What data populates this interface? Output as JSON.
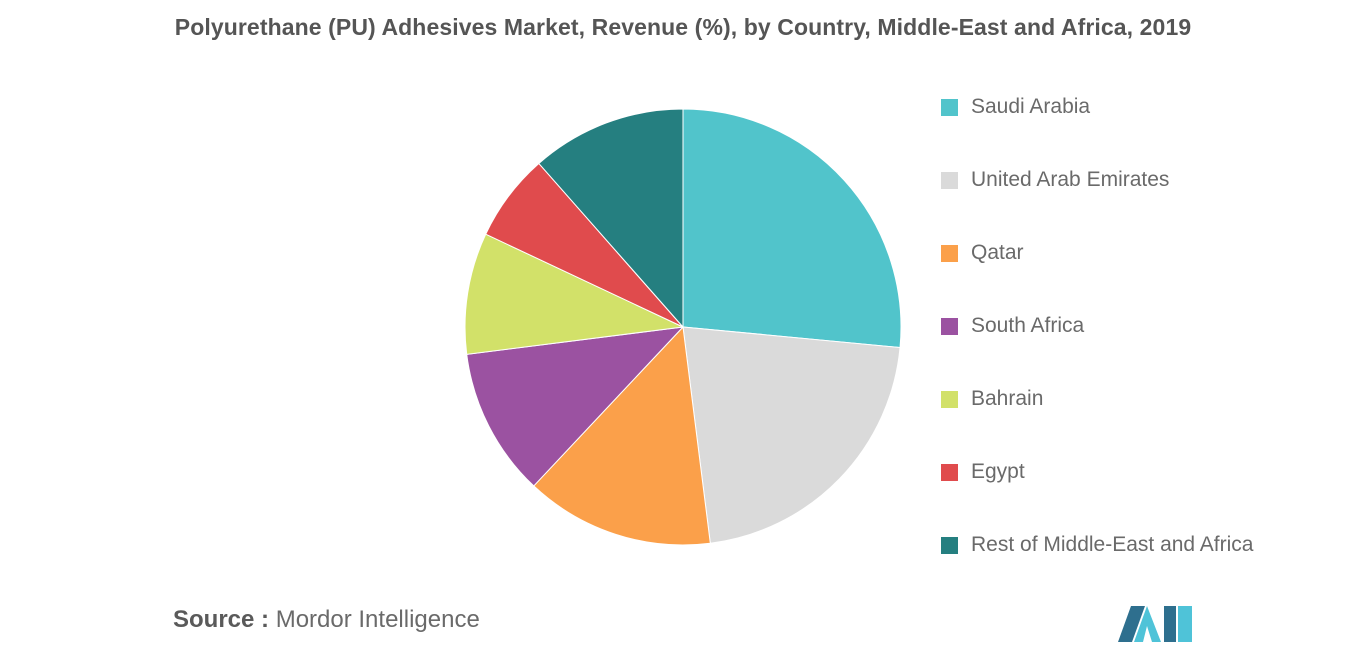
{
  "chart_data": {
    "type": "pie",
    "title": "Polyurethane (PU) Adhesives Market, Revenue (%), by Country, Middle-East and Africa, 2019",
    "unit": "%",
    "legend_position": "right",
    "slices": [
      {
        "label": "Saudi Arabia",
        "value": 26.5,
        "color": "#51C4CB"
      },
      {
        "label": "United Arab Emirates",
        "value": 21.5,
        "color": "#DADADA"
      },
      {
        "label": "Qatar",
        "value": 14.0,
        "color": "#FBA04A"
      },
      {
        "label": "South Africa",
        "value": 11.0,
        "color": "#9B52A1"
      },
      {
        "label": "Bahrain",
        "value": 9.0,
        "color": "#D2E169"
      },
      {
        "label": "Egypt",
        "value": 6.5,
        "color": "#E04B4D"
      },
      {
        "label": "Rest of Middle-East and Africa",
        "value": 11.5,
        "color": "#257F80"
      }
    ]
  },
  "source": {
    "key": "Source :",
    "value": "Mordor Intelligence"
  },
  "logo": {
    "name": "mordor-intelligence-logo",
    "colors": [
      "#2E6F8E",
      "#4FC3D8"
    ]
  }
}
